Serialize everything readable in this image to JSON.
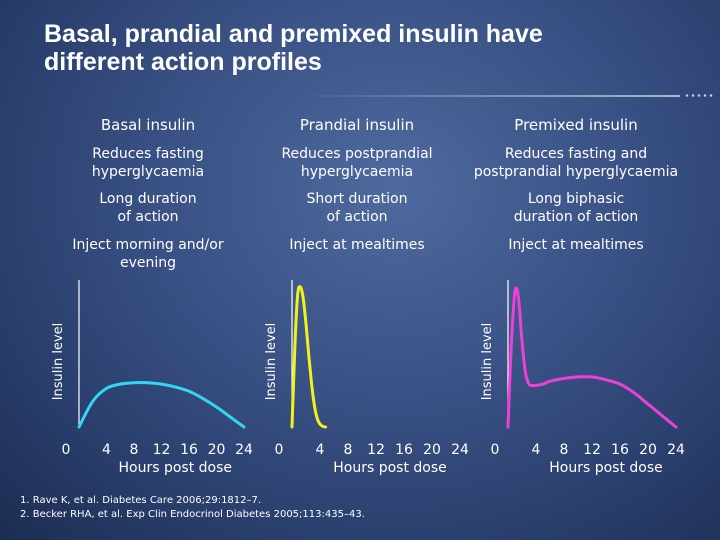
{
  "title": {
    "line1": "Basal, prandial and premixed insulin have",
    "line2": "different action profiles"
  },
  "columns": [
    {
      "heading": "Basal insulin",
      "row1": "Reduces fasting\nhyperglycaemia",
      "row2": "Long duration\nof action",
      "row3": "Inject morning and/or\nevening"
    },
    {
      "heading": "Prandial insulin",
      "row1": "Reduces postprandial\nhyperglycaemia",
      "row2": "Short duration\nof action",
      "row3": "Inject at mealtimes"
    },
    {
      "heading": "Premixed insulin",
      "row1": "Reduces fasting and\npostprandial hyperglycaemia",
      "row2": "Long biphasic\nduration of action",
      "row3": "Inject at mealtimes"
    }
  ],
  "chart_data": [
    {
      "type": "line",
      "title": "Basal insulin",
      "xlabel": "Hours post dose",
      "ylabel": "Insulin level",
      "x_ticks": [
        "0",
        "4",
        "8",
        "12",
        "16",
        "20",
        "24"
      ],
      "xlim": [
        0,
        24
      ],
      "ylim": [
        0,
        1
      ],
      "color": "#33d6f0",
      "series": [
        {
          "name": "Basal insulin",
          "x": [
            0,
            2,
            4,
            6,
            8,
            10,
            12,
            14,
            16,
            18,
            20,
            22,
            24
          ],
          "y": [
            0,
            0.18,
            0.27,
            0.3,
            0.31,
            0.31,
            0.3,
            0.28,
            0.25,
            0.2,
            0.14,
            0.07,
            0
          ]
        }
      ]
    },
    {
      "type": "line",
      "title": "Prandial insulin",
      "xlabel": "Hours post dose",
      "ylabel": "Insulin level",
      "x_ticks": [
        "0",
        "4",
        "8",
        "12",
        "16",
        "20",
        "24"
      ],
      "xlim": [
        0,
        24
      ],
      "ylim": [
        0,
        1
      ],
      "color": "#f2f21a",
      "series": [
        {
          "name": "Prandial insulin",
          "x": [
            0,
            0.4,
            0.8,
            1.2,
            1.6,
            2.0,
            2.4,
            2.8,
            3.2,
            3.6,
            4.0,
            4.4,
            4.8
          ],
          "y": [
            0,
            0.55,
            0.92,
            0.98,
            0.9,
            0.72,
            0.5,
            0.3,
            0.15,
            0.06,
            0.02,
            0.005,
            0
          ]
        }
      ]
    },
    {
      "type": "line",
      "title": "Premixed insulin",
      "xlabel": "Hours post dose",
      "ylabel": "Insulin level",
      "x_ticks": [
        "0",
        "4",
        "8",
        "12",
        "16",
        "20",
        "24"
      ],
      "xlim": [
        0,
        24
      ],
      "ylim": [
        0,
        1
      ],
      "color": "#ee3fd6",
      "series": [
        {
          "name": "Premixed insulin",
          "x": [
            0,
            0.5,
            1,
            1.5,
            2,
            2.5,
            3,
            3.5,
            4,
            5,
            6,
            8,
            10,
            12,
            14,
            16,
            18,
            20,
            22,
            24
          ],
          "y": [
            0,
            0.6,
            0.95,
            0.9,
            0.6,
            0.38,
            0.3,
            0.29,
            0.29,
            0.3,
            0.32,
            0.34,
            0.35,
            0.35,
            0.33,
            0.3,
            0.24,
            0.16,
            0.08,
            0
          ]
        }
      ]
    }
  ],
  "references": {
    "line1": "1. Rave K, et al. Diabetes Care 2006;29:1812–7.",
    "line2": "2. Becker RHA, et al. Exp Clin Endocrinol Diabetes 2005;113:435–43."
  }
}
